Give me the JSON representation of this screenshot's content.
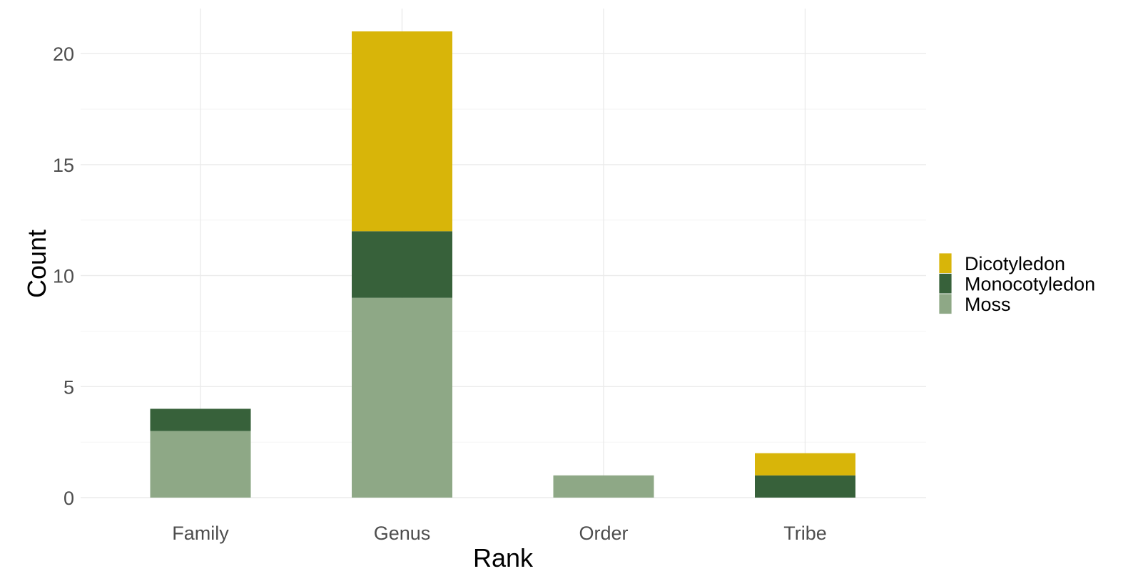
{
  "chart_data": {
    "type": "bar",
    "stacked": true,
    "categories": [
      "Family",
      "Genus",
      "Order",
      "Tribe"
    ],
    "series": [
      {
        "name": "Moss",
        "color": "#8ea886",
        "values": [
          3,
          9,
          1,
          0
        ]
      },
      {
        "name": "Monocotyledon",
        "color": "#37613a",
        "values": [
          1,
          3,
          0,
          1
        ]
      },
      {
        "name": "Dicotyledon",
        "color": "#d8b509",
        "values": [
          0,
          9,
          0,
          1
        ]
      }
    ],
    "legend_order": [
      "Dicotyledon",
      "Monocotyledon",
      "Moss"
    ],
    "legend_position": "right",
    "xlabel": "Rank",
    "ylabel": "Count",
    "ylim": [
      0,
      22
    ],
    "yticks": [
      0,
      5,
      10,
      15,
      20
    ],
    "grid": true
  }
}
